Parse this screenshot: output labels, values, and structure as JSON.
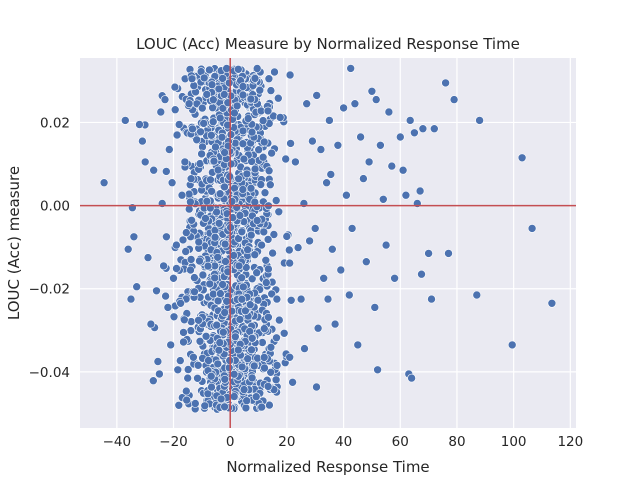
{
  "chart_data": {
    "type": "scatter",
    "title": "LOUC (Acc) Measure by Normalized Response Time",
    "xlabel": "Normalized Response Time",
    "ylabel": "LOUC (Acc) measure",
    "xlim": [
      -53,
      122
    ],
    "ylim": [
      -0.0535,
      0.0355
    ],
    "xticks": [
      -40,
      -20,
      0,
      20,
      40,
      60,
      80,
      100,
      120
    ],
    "xtick_labels": [
      "−40",
      "−20",
      "0",
      "20",
      "40",
      "60",
      "80",
      "100",
      "120"
    ],
    "yticks": [
      -0.04,
      -0.02,
      0.0,
      0.02
    ],
    "ytick_labels": [
      "−0.04",
      "−0.02",
      "0.00",
      "0.02"
    ],
    "grid": true,
    "reference_lines": {
      "x": 0,
      "y": 0,
      "color": "#c44e52"
    },
    "colors": {
      "background": "#eaeaf2",
      "grid": "#ffffff",
      "marker": "#4c72b0",
      "marker_edge": "#ffffff"
    },
    "cluster": {
      "note": "dense core of about 1500 points",
      "x_center": 0,
      "x_spread": 8,
      "y_range": [
        -0.049,
        0.033
      ],
      "count": 1500
    },
    "points": [
      [
        -44.5,
        0.0055
      ],
      [
        -37,
        0.0205
      ],
      [
        -36,
        -0.0105
      ],
      [
        -35,
        -0.0225
      ],
      [
        -34.5,
        -0.0005
      ],
      [
        -34,
        -0.0075
      ],
      [
        -33,
        -0.0195
      ],
      [
        -32,
        0.0195
      ],
      [
        -31,
        0.0155
      ],
      [
        -30,
        0.0105
      ],
      [
        -29,
        -0.0125
      ],
      [
        -28,
        -0.0285
      ],
      [
        -27,
        0.0085
      ],
      [
        -26,
        -0.0205
      ],
      [
        -25.5,
        -0.0375
      ],
      [
        -25,
        -0.0405
      ],
      [
        -24.5,
        0.0225
      ],
      [
        -24,
        0.0005
      ],
      [
        -23.5,
        -0.0145
      ],
      [
        -23,
        0.0255
      ],
      [
        -22.5,
        -0.0075
      ],
      [
        -22,
        -0.0245
      ],
      [
        -21.5,
        0.0135
      ],
      [
        -21,
        -0.0335
      ],
      [
        -20.5,
        0.0055
      ],
      [
        -20,
        -0.0175
      ],
      [
        -19.5,
        0.0285
      ],
      [
        -19,
        -0.0095
      ],
      [
        -18.5,
        -0.0395
      ],
      [
        -18,
        0.0195
      ],
      [
        -17.5,
        -0.0235
      ],
      [
        -17,
        0.0025
      ],
      [
        -16.5,
        -0.0305
      ],
      [
        -16,
        0.0105
      ],
      [
        -15.5,
        -0.0065
      ],
      [
        -15,
        -0.0415
      ],
      [
        -14.5,
        0.0245
      ],
      [
        -14,
        -0.0155
      ],
      [
        -13.5,
        0.0305
      ],
      [
        -13,
        -0.0365
      ],
      [
        21,
        -0.0365
      ],
      [
        22,
        -0.0425
      ],
      [
        23,
        0.0105
      ],
      [
        25,
        -0.0225
      ],
      [
        26,
        0.0005
      ],
      [
        27,
        0.0245
      ],
      [
        28,
        -0.0085
      ],
      [
        29,
        0.0155
      ],
      [
        30,
        -0.0055
      ],
      [
        30.5,
        0.0265
      ],
      [
        31,
        -0.0295
      ],
      [
        32,
        0.0135
      ],
      [
        33,
        -0.0175
      ],
      [
        34,
        0.0055
      ],
      [
        34.5,
        -0.0225
      ],
      [
        35,
        0.0205
      ],
      [
        35.5,
        0.0075
      ],
      [
        36,
        -0.0105
      ],
      [
        37,
        -0.0285
      ],
      [
        38,
        0.0145
      ],
      [
        39,
        -0.0155
      ],
      [
        40,
        0.0235
      ],
      [
        41,
        0.0025
      ],
      [
        42,
        -0.0215
      ],
      [
        42.5,
        0.033
      ],
      [
        43,
        -0.0055
      ],
      [
        44,
        0.0245
      ],
      [
        45,
        -0.0335
      ],
      [
        46,
        0.0165
      ],
      [
        47,
        0.0065
      ],
      [
        48,
        -0.0135
      ],
      [
        49,
        0.0105
      ],
      [
        50,
        0.0275
      ],
      [
        51,
        -0.0245
      ],
      [
        51.5,
        0.0255
      ],
      [
        52,
        -0.0395
      ],
      [
        53,
        0.0145
      ],
      [
        54,
        0.0015
      ],
      [
        55,
        -0.0095
      ],
      [
        56,
        0.0225
      ],
      [
        57,
        0.0095
      ],
      [
        58,
        -0.0175
      ],
      [
        60,
        0.0165
      ],
      [
        61,
        0.0085
      ],
      [
        62,
        0.0025
      ],
      [
        63,
        -0.0405
      ],
      [
        63.5,
        0.0205
      ],
      [
        64,
        -0.0415
      ],
      [
        65,
        0.0175
      ],
      [
        66,
        0.0005
      ],
      [
        67,
        0.0035
      ],
      [
        67.5,
        -0.0165
      ],
      [
        68,
        0.0185
      ],
      [
        70,
        -0.0115
      ],
      [
        71,
        -0.0225
      ],
      [
        72,
        0.0185
      ],
      [
        76,
        0.0295
      ],
      [
        77,
        -0.0115
      ],
      [
        79,
        0.0255
      ],
      [
        87,
        -0.0215
      ],
      [
        88,
        0.0205
      ],
      [
        99.5,
        -0.0335
      ],
      [
        103,
        0.0115
      ],
      [
        106.5,
        -0.0055
      ],
      [
        113.5,
        -0.0235
      ]
    ]
  }
}
